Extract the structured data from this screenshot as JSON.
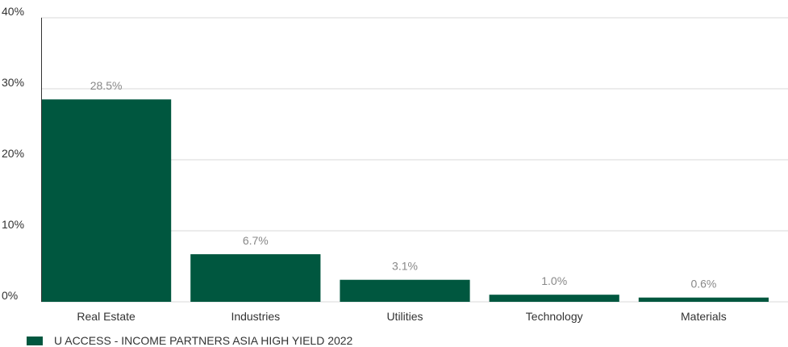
{
  "chart_data": {
    "type": "bar",
    "categories": [
      "Real Estate",
      "Industries",
      "Utilities",
      "Technology",
      "Materials"
    ],
    "series": [
      {
        "name": "U ACCESS - INCOME PARTNERS ASIA HIGH YIELD 2022",
        "values": [
          28.5,
          6.7,
          3.1,
          1.0,
          0.6
        ],
        "labels": [
          "28.5%",
          "6.7%",
          "3.1%",
          "1.0%",
          "0.6%"
        ]
      }
    ],
    "ylim": [
      0,
      40
    ],
    "yticks": [
      0,
      10,
      20,
      30,
      40
    ],
    "ytick_labels": [
      "0%",
      "10%",
      "20%",
      "30%",
      "40%"
    ],
    "grid": true,
    "legend_position": "bottom-left",
    "colors": {
      "bar": "#00573f",
      "grid": "#d9d9d9",
      "axis": "#333333"
    }
  }
}
